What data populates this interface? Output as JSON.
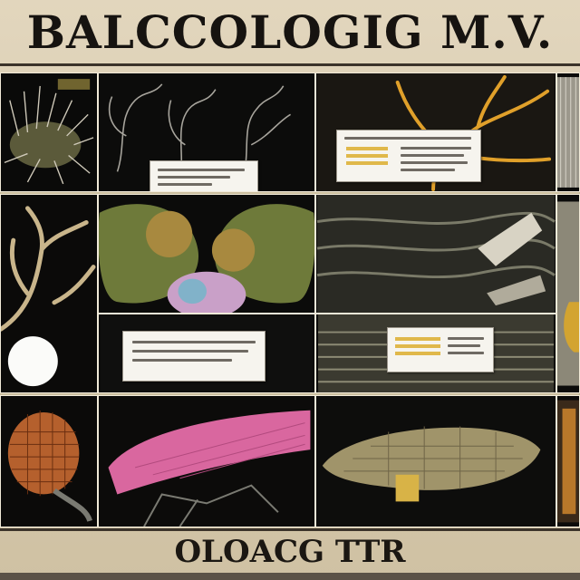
{
  "poster": {
    "title": "BALCCOLOGIG M.V.",
    "footer": "OLOACG TTR"
  },
  "colors": {
    "background": "#d9ccb0",
    "panel_bg": "#0b0b0a",
    "accent_orange": "#e0a02a",
    "accent_pink": "#d9679f",
    "moss_green": "#6e7a3a"
  },
  "panels": [
    {
      "name": "panel-spiky-specimen"
    },
    {
      "name": "panel-branching-filaments"
    },
    {
      "name": "panel-orange-network"
    },
    {
      "name": "panel-edge-texture-right"
    },
    {
      "name": "panel-coral-branches"
    },
    {
      "name": "panel-moss-clusters"
    },
    {
      "name": "panel-layered-ridges"
    },
    {
      "name": "panel-dark-specimen-label"
    },
    {
      "name": "panel-striated-fossil"
    },
    {
      "name": "panel-orange-lattice"
    },
    {
      "name": "panel-pink-wing"
    },
    {
      "name": "panel-fan-specimen"
    },
    {
      "name": "panel-edge-strip-right"
    }
  ]
}
